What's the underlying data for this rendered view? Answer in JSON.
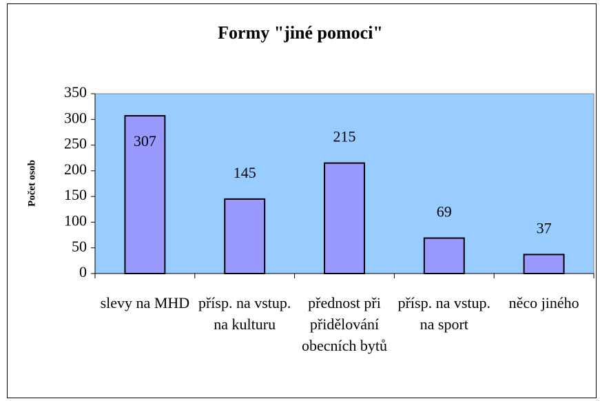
{
  "chart_data": {
    "type": "bar",
    "title": "Formy \"jiné pomoci\"",
    "y_label": "Počet osob",
    "categories": [
      "slevy na MHD",
      "přísp. na vstup. na kulturu",
      "přednost při přidělování obecních bytů",
      "přísp. na vstup. na sport",
      "něco jiného"
    ],
    "values": [
      307,
      145,
      215,
      69,
      37
    ],
    "color": "#9999ff",
    "plot_background": "#99ccff",
    "ylim": [
      0,
      350
    ],
    "yticks": [
      0,
      50,
      100,
      150,
      200,
      250,
      300,
      350
    ],
    "grid": false
  }
}
